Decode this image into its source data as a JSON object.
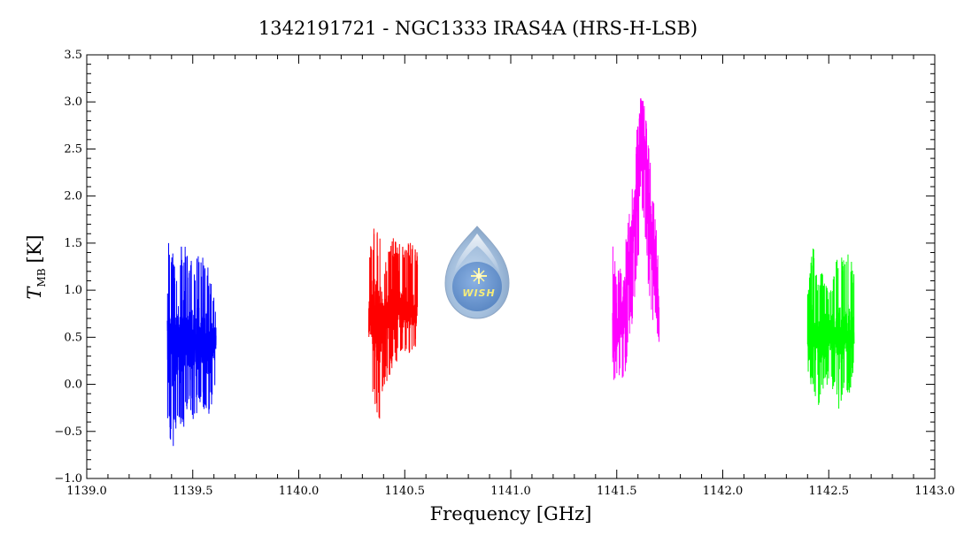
{
  "chart_data": {
    "type": "line",
    "title": "1342191721 - NGC1333 IRAS4A (HRS-H-LSB)",
    "xlabel": "Frequency [GHz]",
    "ylabel_main": "T",
    "ylabel_sub": "MB",
    "ylabel_unit": "[K]",
    "xlim": [
      1139.0,
      1143.0
    ],
    "ylim": [
      -1.0,
      3.5
    ],
    "xticks": [
      "1139.0",
      "1139.5",
      "1140.0",
      "1140.5",
      "1141.0",
      "1141.5",
      "1142.0",
      "1142.5",
      "1143.0"
    ],
    "yticks": [
      "−1.0",
      "−0.5",
      "0.0",
      "0.5",
      "1.0",
      "1.5",
      "2.0",
      "2.5",
      "3.0",
      "3.5"
    ],
    "logo_text": "WISH",
    "series": [
      {
        "color": "#0000ff",
        "x": [
          1139.38,
          1139.405,
          1139.43,
          1139.455,
          1139.48,
          1139.505,
          1139.53,
          1139.555,
          1139.58,
          1139.61
        ],
        "y_center": [
          0.45,
          0.45,
          0.45,
          0.45,
          0.45,
          0.45,
          0.45,
          0.45,
          0.45,
          0.45
        ],
        "y_low": [
          -0.5,
          -0.7,
          -0.4,
          -0.55,
          -0.3,
          -0.5,
          -0.2,
          -0.3,
          -0.35,
          0.05
        ],
        "y_high": [
          1.75,
          1.4,
          1.2,
          1.65,
          1.3,
          1.35,
          1.45,
          1.35,
          1.2,
          0.8
        ]
      },
      {
        "color": "#ff0000",
        "x": [
          1140.33,
          1140.355,
          1140.38,
          1140.405,
          1140.43,
          1140.455,
          1140.48,
          1140.505,
          1140.53,
          1140.56
        ],
        "y_center": [
          0.7,
          0.7,
          0.7,
          0.7,
          0.75,
          0.8,
          0.8,
          0.8,
          0.75,
          0.75
        ],
        "y_low": [
          0.05,
          -0.2,
          -0.4,
          -0.05,
          0.1,
          0.2,
          0.3,
          0.3,
          0.35,
          0.4
        ],
        "y_high": [
          1.4,
          1.75,
          1.6,
          1.3,
          1.55,
          1.6,
          1.55,
          1.55,
          1.5,
          1.4
        ]
      },
      {
        "color": "#ff00ff",
        "x": [
          1141.48,
          1141.51,
          1141.54,
          1141.57,
          1141.6,
          1141.615,
          1141.63,
          1141.65,
          1141.68,
          1141.7
        ],
        "y_center": [
          0.35,
          0.6,
          0.9,
          1.6,
          2.2,
          2.6,
          2.6,
          2.0,
          1.0,
          0.6
        ],
        "y_low": [
          0.05,
          0.0,
          0.1,
          0.6,
          1.2,
          1.6,
          1.7,
          1.0,
          0.3,
          -0.05
        ],
        "y_high": [
          1.5,
          1.2,
          1.5,
          2.0,
          2.85,
          3.1,
          3.0,
          2.6,
          1.8,
          1.4
        ]
      },
      {
        "color": "#00ff00",
        "x": [
          1142.4,
          1142.425,
          1142.45,
          1142.475,
          1142.5,
          1142.525,
          1142.55,
          1142.575,
          1142.6,
          1142.62
        ],
        "y_center": [
          0.5,
          0.5,
          0.5,
          0.5,
          0.5,
          0.5,
          0.5,
          0.5,
          0.5,
          0.5
        ],
        "y_low": [
          0.0,
          -0.1,
          -0.25,
          -0.05,
          0.0,
          -0.1,
          -0.3,
          0.0,
          -0.15,
          0.2
        ],
        "y_high": [
          1.0,
          1.5,
          1.1,
          1.25,
          1.0,
          1.2,
          1.45,
          1.3,
          1.5,
          1.2
        ]
      }
    ]
  }
}
